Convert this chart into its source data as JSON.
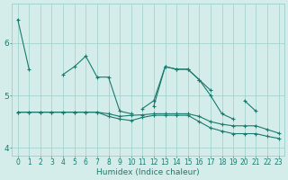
{
  "xlabel": "Humidex (Indice chaleur)",
  "bg_color": "#d4edea",
  "line_color": "#1a7a6e",
  "grid_color": "#9ececa",
  "x_values": [
    0,
    1,
    2,
    3,
    4,
    5,
    6,
    7,
    8,
    9,
    10,
    11,
    12,
    13,
    14,
    15,
    16,
    17,
    18,
    19,
    20,
    21,
    22,
    23
  ],
  "series1": [
    6.45,
    5.5,
    null,
    null,
    5.4,
    5.55,
    5.75,
    5.35,
    5.35,
    4.7,
    4.65,
    null,
    4.8,
    5.55,
    5.5,
    5.5,
    5.3,
    5.1,
    null,
    null,
    4.9,
    4.7,
    null,
    null
  ],
  "series2": [
    null,
    null,
    null,
    null,
    null,
    null,
    null,
    null,
    null,
    null,
    null,
    4.75,
    4.9,
    5.55,
    5.5,
    5.5,
    5.3,
    5.0,
    4.65,
    4.55,
    null,
    null,
    null,
    null
  ],
  "series3": [
    4.68,
    4.68,
    4.68,
    4.68,
    4.68,
    4.68,
    4.68,
    4.68,
    4.65,
    4.6,
    4.62,
    4.63,
    4.65,
    4.65,
    4.65,
    4.65,
    4.6,
    4.5,
    4.45,
    4.42,
    4.42,
    4.42,
    4.35,
    4.28
  ],
  "series4": [
    4.68,
    4.68,
    4.68,
    4.68,
    4.68,
    4.68,
    4.68,
    4.68,
    4.6,
    4.55,
    4.52,
    4.58,
    4.62,
    4.62,
    4.62,
    4.62,
    4.5,
    4.38,
    4.32,
    4.27,
    4.27,
    4.27,
    4.22,
    4.18
  ],
  "ylim": [
    3.85,
    6.75
  ],
  "yticks": [
    4,
    5,
    6
  ],
  "xticks": [
    0,
    1,
    2,
    3,
    4,
    5,
    6,
    7,
    8,
    9,
    10,
    11,
    12,
    13,
    14,
    15,
    16,
    17,
    18,
    19,
    20,
    21,
    22,
    23
  ]
}
